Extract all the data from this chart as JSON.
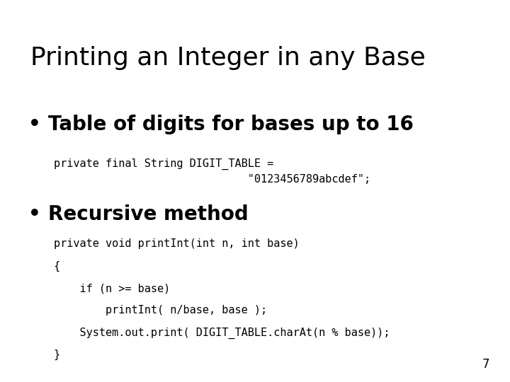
{
  "title": "Printing an Integer in any Base",
  "background_color": "#ffffff",
  "text_color": "#000000",
  "bullet1_header": "Table of digits for bases up to 16",
  "bullet1_code_line1": "private final String DIGIT_TABLE =",
  "bullet1_code_line2": "\"0123456789abcdef\";",
  "bullet2_header": "Recursive method",
  "bullet2_code_line1": "private void printInt(int n, int base)",
  "bullet2_code_line2": "{",
  "bullet2_code_line3": "    if (n >= base)",
  "bullet2_code_line4": "        printInt( n/base, base );",
  "bullet2_code_line5": "    System.out.print( DIGIT_TABLE.charAt(n % base));",
  "bullet2_code_line6": "}",
  "page_number": "7",
  "title_fontsize": 26,
  "bullet_header_fontsize": 20,
  "code_fontsize": 11,
  "page_num_fontsize": 12
}
